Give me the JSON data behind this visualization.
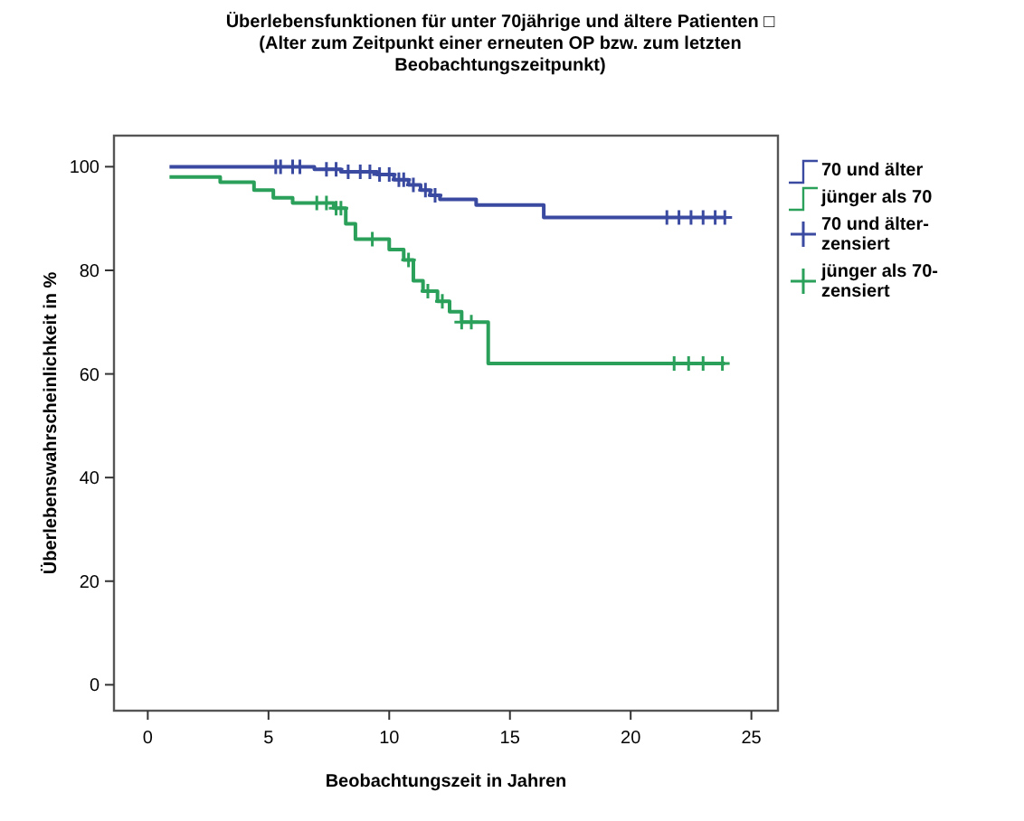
{
  "chart_data": {
    "type": "step",
    "title": "Überlebensfunktionen für unter 70jährige und ältere Patienten □\n(Alter zum Zeitpunkt einer erneuten OP bzw. zum letzten\nBeobachtungszeitpunkt)",
    "xlabel": "Beobachtungszeit in Jahren",
    "ylabel": "Überlebenswahrscheinlichkeit in %",
    "xlim": [
      -1.4,
      26.1
    ],
    "ylim": [
      -5,
      106
    ],
    "xticks": [
      0,
      5,
      10,
      15,
      20,
      25
    ],
    "yticks": [
      0,
      20,
      40,
      60,
      80,
      100
    ],
    "grid": false,
    "legend": "right",
    "series": [
      {
        "name": "70 und älter",
        "color": "#3a4aa0",
        "x": [
          0.9,
          6.9,
          8.0,
          9.5,
          10.2,
          10.8,
          11.3,
          11.7,
          12.1,
          13.6,
          16.4,
          23.9
        ],
        "values": [
          100,
          99.5,
          99,
          98.5,
          97.5,
          96.5,
          95.5,
          94.5,
          93.7,
          92.6,
          90.2,
          90.2
        ]
      },
      {
        "name": "jünger als 70",
        "color": "#2aa05a",
        "x": [
          0.9,
          3.0,
          4.4,
          5.2,
          6.0,
          7.7,
          8.2,
          8.6,
          10.0,
          10.6,
          11.0,
          11.4,
          12.0,
          12.5,
          13.0,
          14.1,
          23.9
        ],
        "values": [
          98,
          97,
          95.5,
          94,
          93,
          92,
          89,
          86,
          84,
          82,
          78,
          76,
          74,
          72,
          70,
          62,
          62
        ]
      },
      {
        "name": "70 und älter-zensiert",
        "type": "scatter",
        "marker": "cross",
        "color": "#3a4aa0",
        "x": [
          5.3,
          5.5,
          6.0,
          6.3,
          7.4,
          7.8,
          8.3,
          8.8,
          9.2,
          9.6,
          10.0,
          10.4,
          10.6,
          11.0,
          11.5,
          11.9,
          21.5,
          22.0,
          22.5,
          23.0,
          23.5,
          23.9
        ],
        "values": [
          100,
          100,
          100,
          100,
          99.5,
          99.5,
          99,
          99,
          99,
          98.5,
          98.5,
          97.5,
          97.5,
          96.5,
          95.5,
          94.5,
          90.2,
          90.2,
          90.2,
          90.2,
          90.2,
          90.2
        ]
      },
      {
        "name": "jünger als 70-zensiert",
        "type": "scatter",
        "marker": "cross",
        "color": "#2aa05a",
        "x": [
          7.0,
          7.4,
          7.8,
          8.0,
          9.3,
          10.8,
          11.6,
          12.2,
          13.0,
          13.4,
          21.8,
          22.4,
          23.0,
          23.8
        ],
        "values": [
          93,
          93,
          92,
          92,
          86,
          82,
          76,
          74,
          70,
          70,
          62,
          62,
          62,
          62
        ]
      }
    ]
  }
}
